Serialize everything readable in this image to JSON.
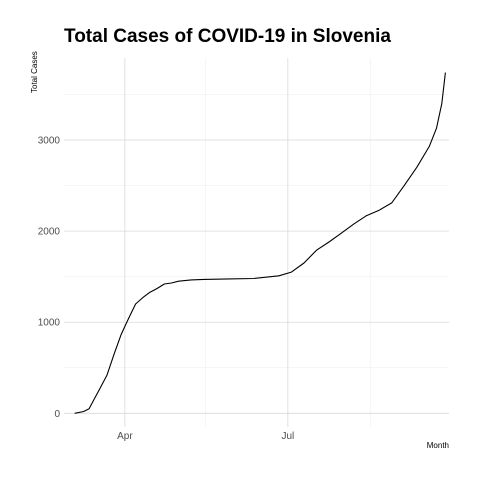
{
  "chart_data": {
    "type": "line",
    "title": "Total Cases of COVID-19 in Slovenia",
    "xlabel": "Month",
    "ylabel": "Total Cases",
    "grid": true,
    "legend": "none",
    "line_color": "#000000",
    "grid_major_color": "#d9d9d9",
    "grid_minor_color": "#ececec",
    "x_range": [
      "2020-02-27",
      "2020-09-29"
    ],
    "ylim": [
      -150,
      3900
    ],
    "x_ticks": [
      {
        "date": "2020-04-01",
        "label": "Apr"
      },
      {
        "date": "2020-07-01",
        "label": "Jul"
      }
    ],
    "x_minor_ticks": [
      "2020-05-16",
      "2020-08-16"
    ],
    "y_ticks": [
      {
        "value": 0,
        "label": "0"
      },
      {
        "value": 1000,
        "label": "1000"
      },
      {
        "value": 2000,
        "label": "2000"
      },
      {
        "value": 3000,
        "label": "3000"
      }
    ],
    "y_minor_ticks": [
      500,
      1500,
      2500,
      3500
    ],
    "series": [
      {
        "x": [
          "2020-03-04",
          "2020-03-09",
          "2020-03-12",
          "2020-03-15",
          "2020-03-18",
          "2020-03-22",
          "2020-03-26",
          "2020-03-30",
          "2020-04-03",
          "2020-04-07",
          "2020-04-11",
          "2020-04-15",
          "2020-04-19",
          "2020-04-23",
          "2020-04-27",
          "2020-05-01",
          "2020-05-08",
          "2020-05-15",
          "2020-05-29",
          "2020-06-12",
          "2020-06-26",
          "2020-07-03",
          "2020-07-10",
          "2020-07-17",
          "2020-07-24",
          "2020-07-31",
          "2020-08-07",
          "2020-08-14",
          "2020-08-21",
          "2020-08-28",
          "2020-09-04",
          "2020-09-11",
          "2020-09-18",
          "2020-09-22",
          "2020-09-25",
          "2020-09-27"
        ],
        "y": [
          0,
          20,
          50,
          160,
          270,
          420,
          650,
          870,
          1040,
          1200,
          1270,
          1330,
          1370,
          1420,
          1430,
          1450,
          1465,
          1470,
          1475,
          1480,
          1510,
          1550,
          1650,
          1790,
          1880,
          1980,
          2080,
          2170,
          2230,
          2310,
          2500,
          2700,
          2930,
          3130,
          3400,
          3740
        ]
      }
    ]
  }
}
